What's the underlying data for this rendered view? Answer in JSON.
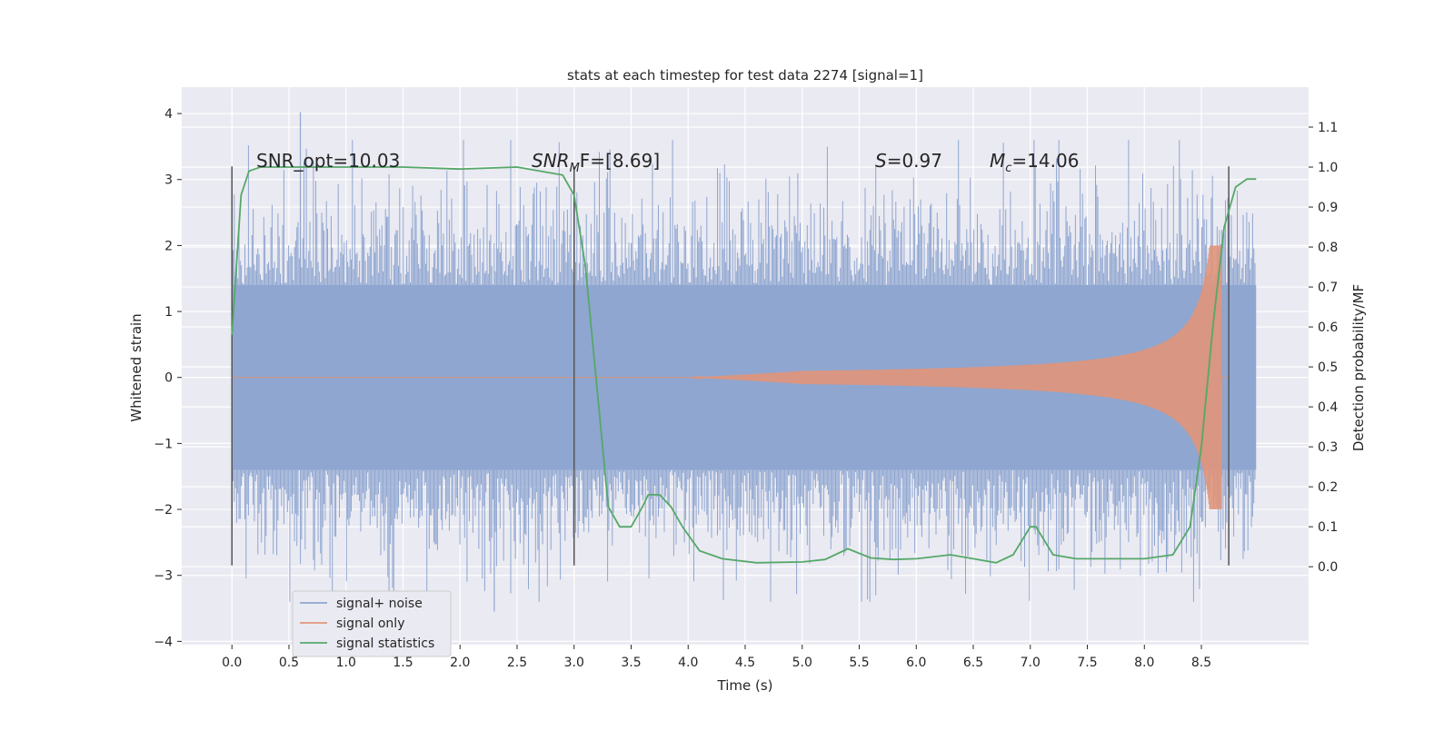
{
  "chart_data": {
    "type": "line",
    "title": "stats at each timestep for test data 2274 [signal=1]",
    "xlabel": "Time (s)",
    "ylabel": "Whitened strain",
    "ylabel_right": "Detection probability/MF",
    "xlim": [
      -0.44,
      9.44
    ],
    "ylim": [
      -4.05,
      4.4
    ],
    "ylim_right": [
      -0.195,
      1.2
    ],
    "x_ticks": [
      "0.0",
      "0.5",
      "1.0",
      "1.5",
      "2.0",
      "2.5",
      "3.0",
      "3.5",
      "4.0",
      "4.5",
      "5.0",
      "5.5",
      "6.0",
      "6.5",
      "7.0",
      "7.5",
      "8.0",
      "8.5"
    ],
    "x_tick_values": [
      0,
      0.5,
      1,
      1.5,
      2,
      2.5,
      3,
      3.5,
      4,
      4.5,
      5,
      5.5,
      6,
      6.5,
      7,
      7.5,
      8,
      8.5
    ],
    "y_ticks": [
      "−4",
      "−3",
      "−2",
      "−1",
      "0",
      "1",
      "2",
      "3",
      "4"
    ],
    "y_tick_values": [
      -4,
      -3,
      -2,
      -1,
      0,
      1,
      2,
      3,
      4
    ],
    "y_ticks_right": [
      "0.0",
      "0.1",
      "0.2",
      "0.3",
      "0.4",
      "0.5",
      "0.6",
      "0.7",
      "0.8",
      "0.9",
      "1.0",
      "1.1"
    ],
    "y_tick_values_right": [
      0,
      0.1,
      0.2,
      0.3,
      0.4,
      0.5,
      0.6,
      0.7,
      0.8,
      0.9,
      1.0,
      1.1
    ],
    "grid": true,
    "legend_position": "lower-left",
    "annotations": {
      "snr_opt": "SNR_opt=10.03",
      "snr_mf_base": "SNR",
      "snr_mf_sub": "M",
      "snr_mf_rest": "F=[8.69]",
      "s_italic": "S",
      "s_rest": "=0.97",
      "mc_base": "M",
      "mc_sub": "c",
      "mc_rest": "=14.06"
    },
    "vertical_lines_x": [
      0.0,
      3.0,
      8.74
    ],
    "vertical_lines_range": [
      -2.85,
      3.2
    ],
    "series": [
      {
        "name": "signal+ noise",
        "color": "#8fa6d0",
        "x_range": [
          0.0,
          8.98
        ],
        "typical_amplitude": 1.4,
        "peak_values": [
          4.02,
          -3.55
        ]
      },
      {
        "name": "signal only",
        "color": "#e0957a",
        "x_range": [
          0.0,
          8.75
        ],
        "note_values": "chirp; amplitude ~0 before 4.0 s, ~0.1 at 6.5 s, ~0.5 at 8.3 s, ~2.0 at merger ~8.68 s"
      },
      {
        "name": "signal statistics",
        "color": "#55a868",
        "axis": "right",
        "x": [
          0.0,
          0.08,
          0.15,
          0.25,
          0.5,
          1.0,
          1.5,
          2.0,
          2.5,
          2.9,
          3.0,
          3.1,
          3.2,
          3.3,
          3.4,
          3.5,
          3.6,
          3.65,
          3.75,
          3.85,
          3.95,
          4.1,
          4.3,
          4.6,
          5.0,
          5.2,
          5.4,
          5.6,
          5.8,
          6.0,
          6.3,
          6.5,
          6.7,
          6.85,
          7.0,
          7.05,
          7.2,
          7.4,
          7.8,
          8.0,
          8.25,
          8.4,
          8.5,
          8.6,
          8.7,
          8.8,
          8.9,
          8.98
        ],
        "y": [
          0.58,
          0.93,
          0.99,
          1.0,
          1.0,
          1.0,
          1.0,
          0.995,
          1.0,
          0.98,
          0.93,
          0.75,
          0.45,
          0.15,
          0.1,
          0.1,
          0.15,
          0.18,
          0.18,
          0.15,
          0.1,
          0.04,
          0.02,
          0.01,
          0.012,
          0.018,
          0.045,
          0.022,
          0.018,
          0.02,
          0.03,
          0.02,
          0.01,
          0.03,
          0.1,
          0.1,
          0.03,
          0.02,
          0.02,
          0.02,
          0.03,
          0.1,
          0.3,
          0.6,
          0.85,
          0.95,
          0.97,
          0.97
        ]
      }
    ]
  }
}
